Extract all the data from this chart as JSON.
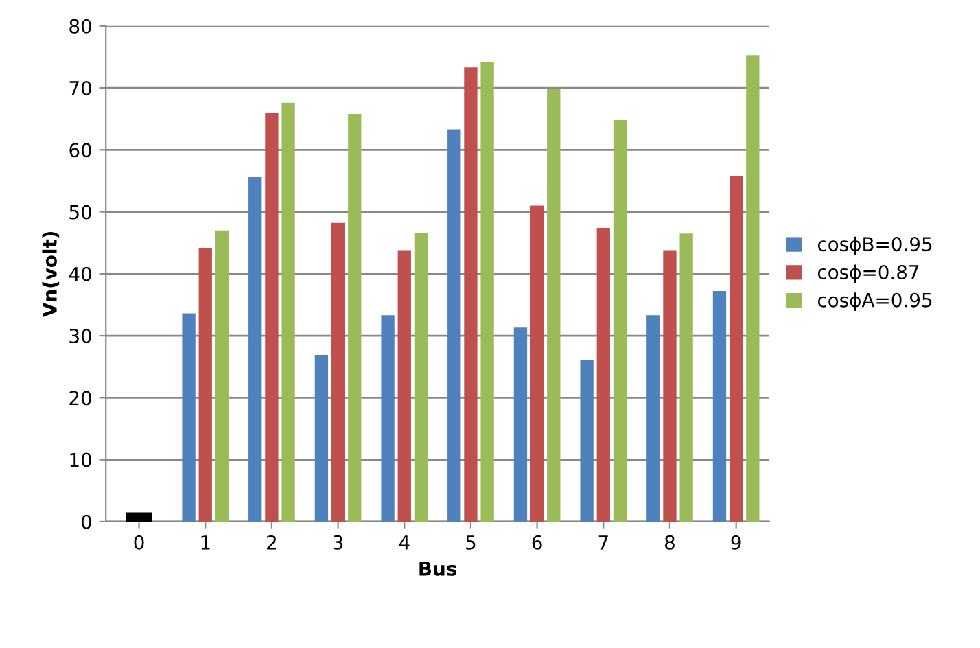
{
  "chart_data": {
    "type": "bar",
    "xlabel": "Bus",
    "ylabel": "Vn(volt)",
    "categories": [
      "0",
      "1",
      "2",
      "3",
      "4",
      "5",
      "6",
      "7",
      "8",
      "9"
    ],
    "series": [
      {
        "name": "cosϕB=0.95",
        "color": "#4f81bd",
        "values": [
          null,
          33.6,
          55.6,
          26.9,
          33.3,
          63.3,
          31.3,
          26.1,
          33.3,
          37.2
        ]
      },
      {
        "name": "cosϕ=0.87",
        "color": "#c0504d",
        "values": [
          null,
          44.1,
          65.9,
          48.2,
          43.8,
          73.3,
          51.0,
          47.4,
          43.8,
          55.8
        ]
      },
      {
        "name": "cosϕA=0.95",
        "color": "#9bbb59",
        "values": [
          null,
          47.0,
          67.6,
          65.8,
          46.6,
          74.1,
          69.9,
          64.8,
          46.5,
          75.3
        ]
      },
      {
        "color": "#000000",
        "x": [
          "0"
        ],
        "values": [
          1.5
        ]
      }
    ],
    "ylim": [
      0,
      80
    ],
    "yticks": [
      0,
      10,
      20,
      30,
      40,
      50,
      60,
      70,
      80
    ],
    "grid": "y",
    "legend": "right"
  }
}
